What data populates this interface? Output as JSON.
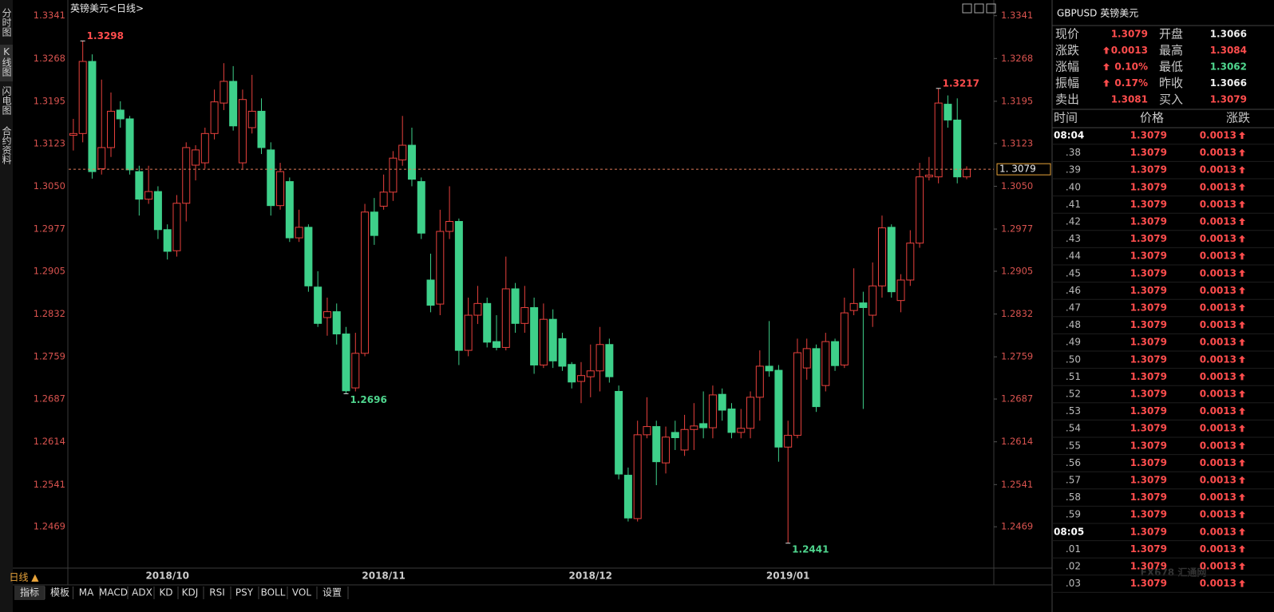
{
  "header": {
    "title": "英镑美元<日线>"
  },
  "sidebar": {
    "tabs": [
      "分时图",
      "K线图",
      "闪电图",
      "合约资料"
    ]
  },
  "chart_data": {
    "type": "candlestick",
    "categories": [
      null,
      null,
      null,
      null,
      null,
      null,
      null,
      null,
      null,
      null,
      "2018/10",
      null,
      null,
      null,
      null,
      null,
      null,
      null,
      null,
      null,
      null,
      null,
      null,
      null,
      null,
      null,
      null,
      null,
      null,
      null,
      null,
      null,
      null,
      "2018/11",
      null,
      null,
      null,
      null,
      null,
      null,
      null,
      null,
      null,
      null,
      null,
      null,
      null,
      null,
      null,
      null,
      null,
      null,
      null,
      null,
      null,
      "2018/12",
      null,
      null,
      null,
      null,
      null,
      null,
      null,
      null,
      null,
      null,
      null,
      null,
      null,
      null,
      null,
      null,
      null,
      null,
      null,
      null,
      "2019/01",
      null,
      null,
      null,
      null,
      null,
      null,
      null,
      null,
      null,
      null,
      null,
      null,
      null,
      null,
      null,
      null,
      null,
      null,
      null
    ],
    "open": [
      1.3137,
      1.314,
      1.3263,
      1.308,
      1.3116,
      1.318,
      1.3165,
      1.3075,
      1.3028,
      1.3041,
      1.2976,
      1.294,
      1.3021,
      1.3086,
      1.309,
      1.314,
      1.3192,
      1.3229,
      1.309,
      1.315,
      1.3178,
      1.3112,
      1.3017,
      1.3058,
      1.2962,
      1.298,
      1.2878,
      1.2826,
      1.2836,
      1.2798,
      1.2706,
      1.2765,
      1.3006,
      1.3016,
      1.304,
      1.3095,
      1.312,
      1.3058,
      1.289,
      1.2849,
      1.2973,
      1.299,
      1.277,
      1.283,
      1.285,
      1.2785,
      1.2775,
      1.2875,
      1.2816,
      1.2843,
      1.2745,
      1.2823,
      1.279,
      1.2746,
      1.2717,
      1.2725,
      1.2735,
      1.278,
      1.27,
      1.2557,
      1.2483,
      1.2626,
      1.264,
      1.2578,
      1.263,
      1.26,
      1.2635,
      1.2645,
      1.2638,
      1.2695,
      1.267,
      1.263,
      1.2637,
      1.269,
      1.2743,
      1.2736,
      1.2605,
      1.2625,
      1.274,
      1.2773,
      1.271,
      1.2785,
      1.2745,
      1.2838,
      1.2851,
      1.283,
      1.288,
      1.298,
      1.2855,
      1.289,
      1.2953,
      1.3066,
      1.3066,
      1.319,
      1.3163,
      1.3066
    ],
    "high": [
      1.3165,
      1.3298,
      1.3275,
      1.3232,
      1.321,
      1.3195,
      1.317,
      1.3085,
      1.3085,
      1.305,
      1.2985,
      1.3035,
      1.3125,
      1.312,
      1.315,
      1.3215,
      1.326,
      1.3255,
      1.3215,
      1.324,
      1.32,
      1.3125,
      1.309,
      1.3065,
      1.301,
      1.2985,
      1.2905,
      1.286,
      1.285,
      1.281,
      1.28,
      1.302,
      1.303,
      1.307,
      1.311,
      1.317,
      1.315,
      1.3065,
      1.2935,
      1.301,
      1.305,
      1.2995,
      1.286,
      1.288,
      1.286,
      1.283,
      1.293,
      1.2885,
      1.288,
      1.286,
      1.285,
      1.284,
      1.28,
      1.275,
      1.275,
      1.278,
      1.281,
      1.279,
      1.271,
      1.257,
      1.265,
      1.269,
      1.265,
      1.264,
      1.265,
      1.266,
      1.268,
      1.27,
      1.271,
      1.2705,
      1.268,
      1.267,
      1.27,
      1.277,
      1.282,
      1.2745,
      1.265,
      1.279,
      1.279,
      1.278,
      1.28,
      1.279,
      1.286,
      1.291,
      1.287,
      1.292,
      1.3,
      1.2985,
      1.29,
      1.2975,
      1.309,
      1.31,
      1.3217,
      1.3205,
      1.32,
      1.3084
    ],
    "low": [
      1.3111,
      1.3125,
      1.3063,
      1.307,
      1.31,
      1.315,
      1.307,
      1.3,
      1.302,
      1.296,
      1.2925,
      1.293,
      1.299,
      1.306,
      1.308,
      1.313,
      1.318,
      1.3145,
      1.308,
      1.314,
      1.3105,
      1.3,
      1.301,
      1.2955,
      1.2955,
      1.287,
      1.281,
      1.2795,
      1.278,
      1.2696,
      1.27,
      1.276,
      1.295,
      1.301,
      1.3025,
      1.3085,
      1.305,
      1.296,
      1.2835,
      1.283,
      1.296,
      1.2745,
      1.276,
      1.2815,
      1.2775,
      1.277,
      1.277,
      1.28,
      1.28,
      1.273,
      1.274,
      1.274,
      1.2735,
      1.2705,
      1.268,
      1.269,
      1.27,
      1.2715,
      1.255,
      1.2478,
      1.2478,
      1.262,
      1.254,
      1.256,
      1.26,
      1.259,
      1.26,
      1.262,
      1.262,
      1.265,
      1.262,
      1.262,
      1.262,
      1.265,
      1.2725,
      1.258,
      1.2441,
      1.262,
      1.272,
      1.2665,
      1.27,
      1.2735,
      1.274,
      1.283,
      1.267,
      1.281,
      1.286,
      1.286,
      1.2835,
      1.288,
      1.2945,
      1.306,
      1.3055,
      1.315,
      1.3055,
      1.3062
    ],
    "close": [
      1.314,
      1.3263,
      1.3075,
      1.3116,
      1.3178,
      1.3165,
      1.3078,
      1.3028,
      1.3041,
      1.2976,
      1.2939,
      1.3021,
      1.3116,
      1.3112,
      1.314,
      1.3194,
      1.3229,
      1.3153,
      1.3198,
      1.3178,
      1.3116,
      1.3017,
      1.3075,
      1.2962,
      1.298,
      1.288,
      1.2816,
      1.2836,
      1.2798,
      1.2701,
      1.2765,
      1.3006,
      1.2966,
      1.304,
      1.3098,
      1.312,
      1.3062,
      1.297,
      1.2847,
      1.2973,
      1.299,
      1.277,
      1.283,
      1.285,
      1.2784,
      1.2775,
      1.2875,
      1.2816,
      1.2843,
      1.2745,
      1.2823,
      1.2752,
      1.2743,
      1.2716,
      1.2727,
      1.2735,
      1.278,
      1.2725,
      1.2559,
      1.2484,
      1.2626,
      1.264,
      1.258,
      1.2622,
      1.2621,
      1.2635,
      1.2641,
      1.2638,
      1.2694,
      1.2668,
      1.263,
      1.2637,
      1.269,
      1.2743,
      1.2735,
      1.2605,
      1.2625,
      1.2766,
      1.2773,
      1.2674,
      1.2785,
      1.2744,
      1.2834,
      1.285,
      1.2843,
      1.288,
      1.2979,
      1.287,
      1.289,
      1.2953,
      1.3066,
      1.3069,
      1.3192,
      1.3163,
      1.3066,
      1.3079
    ],
    "up_color": "#e8413d",
    "down_color": "#3ed08a",
    "ylim": [
      1.2408,
      1.3361
    ],
    "yticks": [
      1.3341,
      1.3268,
      1.3195,
      1.3123,
      {
        "value": 1.305,
        "label": "1.3050"
      },
      1.2977,
      1.2905,
      1.2832,
      1.2759,
      1.2687,
      1.2614,
      1.2541,
      1.2469
    ],
    "marked_highs": [
      1,
      92
    ],
    "marked_lows": [
      29,
      76
    ],
    "last_price": {
      "value": 1.3079,
      "label": "1. 3079"
    },
    "period_label": "日线 ▲"
  },
  "quote": {
    "title": "GBPUSD 英镑美元",
    "rows": [
      [
        "现价",
        "1.3079",
        "开盘",
        "1.3066"
      ],
      [
        "涨跌",
        "0.0013",
        "最高",
        "1.3084"
      ],
      [
        "涨幅",
        "0.10%",
        "最低",
        "1.3062"
      ],
      [
        "振幅",
        "0.17%",
        "昨收",
        "1.3066"
      ],
      [
        "卖出",
        "1.3081",
        "买入",
        "1.3079"
      ]
    ]
  },
  "trades": {
    "headers": [
      "时间",
      "价格",
      "涨跌"
    ],
    "rows": [
      [
        "08:04",
        "1.3079",
        "0.0013"
      ],
      [
        ".38",
        "1.3079",
        "0.0013"
      ],
      [
        ".39",
        "1.3079",
        "0.0013"
      ],
      [
        ".40",
        "1.3079",
        "0.0013"
      ],
      [
        ".41",
        "1.3079",
        "0.0013"
      ],
      [
        ".42",
        "1.3079",
        "0.0013"
      ],
      [
        ".43",
        "1.3079",
        "0.0013"
      ],
      [
        ".44",
        "1.3079",
        "0.0013"
      ],
      [
        ".45",
        "1.3079",
        "0.0013"
      ],
      [
        ".46",
        "1.3079",
        "0.0013"
      ],
      [
        ".47",
        "1.3079",
        "0.0013"
      ],
      [
        ".48",
        "1.3079",
        "0.0013"
      ],
      [
        ".49",
        "1.3079",
        "0.0013"
      ],
      [
        ".50",
        "1.3079",
        "0.0013"
      ],
      [
        ".51",
        "1.3079",
        "0.0013"
      ],
      [
        ".52",
        "1.3079",
        "0.0013"
      ],
      [
        ".53",
        "1.3079",
        "0.0013"
      ],
      [
        ".54",
        "1.3079",
        "0.0013"
      ],
      [
        ".55",
        "1.3079",
        "0.0013"
      ],
      [
        ".56",
        "1.3079",
        "0.0013"
      ],
      [
        ".57",
        "1.3079",
        "0.0013"
      ],
      [
        ".58",
        "1.3079",
        "0.0013"
      ],
      [
        ".59",
        "1.3079",
        "0.0013"
      ],
      [
        "08:05",
        "1.3079",
        "0.0013"
      ],
      [
        ".01",
        "1.3079",
        "0.0013"
      ],
      [
        ".02",
        "1.3079",
        "0.0013"
      ],
      [
        ".03",
        "1.3079",
        "0.0013"
      ]
    ]
  },
  "toolbar": [
    "指标",
    "模板",
    "MA",
    "MACD",
    "ADX",
    "KD",
    "KDJ",
    "RSI",
    "PSY",
    "BOLL",
    "VOL",
    "设置"
  ],
  "watermark": "FX678 汇通网"
}
